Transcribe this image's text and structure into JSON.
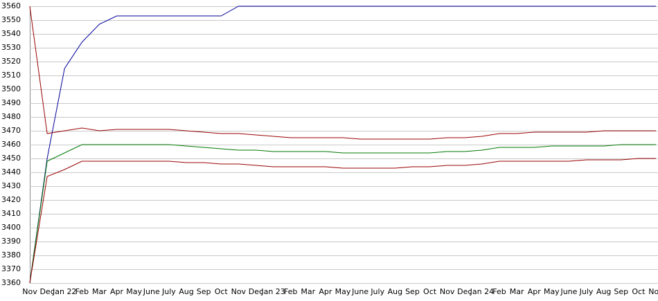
{
  "chart_data": {
    "type": "line",
    "categories": [
      "Nov",
      "Dec",
      "Jan 22",
      "Feb",
      "Mar",
      "Apr",
      "May",
      "June",
      "July",
      "Aug",
      "Sep",
      "Oct",
      "Nov",
      "Dec",
      "Jan 23",
      "Feb",
      "Mar",
      "Apr",
      "May",
      "June",
      "July",
      "Aug",
      "Sep",
      "Oct",
      "Nov",
      "Dec",
      "Jan 24",
      "Feb",
      "Mar",
      "Apr",
      "May",
      "June",
      "July",
      "Aug",
      "Sep",
      "Oct",
      "Nov"
    ],
    "series": [
      {
        "color": "#000099",
        "values": [
          3360,
          3450,
          3515,
          3534,
          3547,
          3553,
          3553,
          3553,
          3553,
          3553,
          3553,
          3553,
          3560,
          3560,
          3560,
          3560,
          3560,
          3560,
          3560,
          3560,
          3560,
          3560,
          3560,
          3560,
          3560,
          3560,
          3560,
          3560,
          3560,
          3560,
          3560,
          3560,
          3560,
          3560,
          3560,
          3560,
          3560
        ]
      },
      {
        "color": "#990000",
        "values": [
          3560,
          3468,
          3470,
          3472,
          3470,
          3471,
          3471,
          3471,
          3471,
          3470,
          3469,
          3468,
          3468,
          3467,
          3466,
          3465,
          3465,
          3465,
          3465,
          3464,
          3464,
          3464,
          3464,
          3464,
          3465,
          3465,
          3466,
          3468,
          3468,
          3469,
          3469,
          3469,
          3469,
          3470,
          3470,
          3470,
          3470
        ]
      },
      {
        "color": "#007700",
        "values": [
          3360,
          3448,
          3454,
          3460,
          3460,
          3460,
          3460,
          3460,
          3460,
          3459,
          3458,
          3457,
          3456,
          3456,
          3455,
          3455,
          3455,
          3455,
          3454,
          3454,
          3454,
          3454,
          3454,
          3454,
          3455,
          3455,
          3456,
          3458,
          3458,
          3458,
          3459,
          3459,
          3459,
          3459,
          3460,
          3460,
          3460
        ]
      },
      {
        "color": "#990000",
        "values": [
          3360,
          3437,
          3442,
          3448,
          3448,
          3448,
          3448,
          3448,
          3448,
          3447,
          3447,
          3446,
          3446,
          3445,
          3444,
          3444,
          3444,
          3444,
          3443,
          3443,
          3443,
          3443,
          3444,
          3444,
          3445,
          3445,
          3446,
          3448,
          3448,
          3448,
          3448,
          3448,
          3449,
          3449,
          3449,
          3450,
          3450
        ]
      }
    ],
    "ylim": [
      3360,
      3560
    ],
    "yticks": [
      3360,
      3370,
      3380,
      3390,
      3400,
      3410,
      3420,
      3430,
      3440,
      3450,
      3460,
      3470,
      3480,
      3490,
      3500,
      3510,
      3520,
      3530,
      3540,
      3550,
      3560
    ],
    "grid": true
  }
}
